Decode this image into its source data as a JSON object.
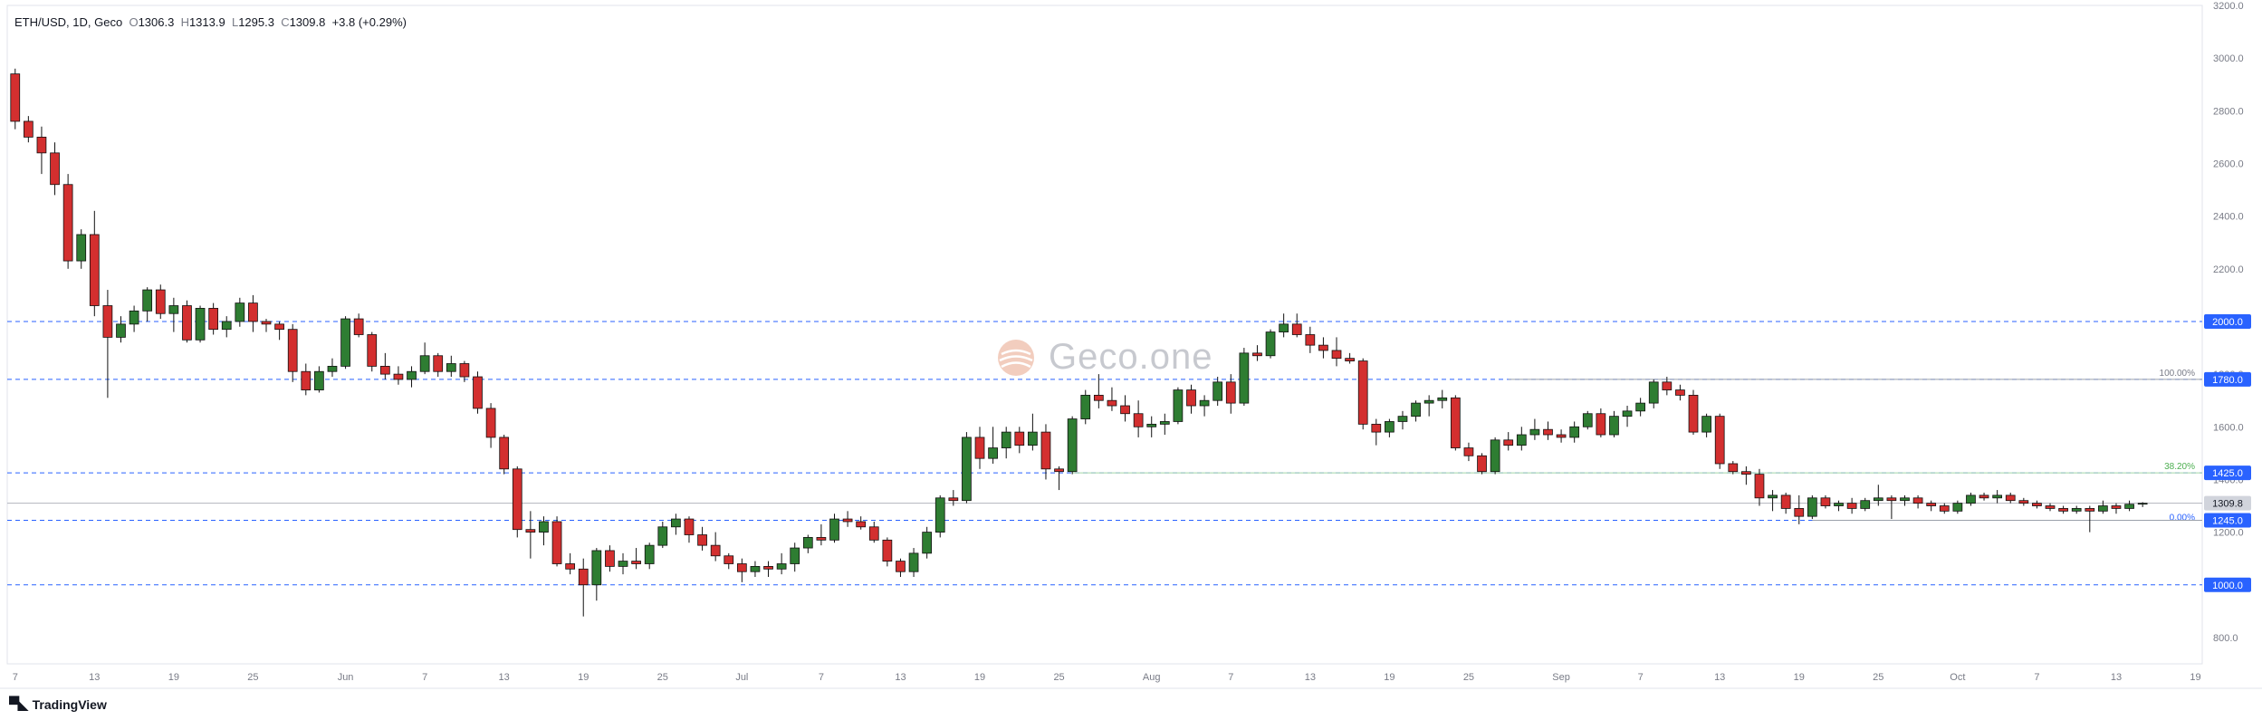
{
  "header": {
    "symbol": "ETH/USD, 1D, Geco",
    "o_label": "O",
    "o_value": "1306.3",
    "h_label": "H",
    "h_value": "1313.9",
    "l_label": "L",
    "l_value": "1295.3",
    "c_label": "C",
    "c_value": "1309.8",
    "change": "+3.8 (+0.29%)"
  },
  "watermark": "Geco.one",
  "footer": {
    "brand": "TradingView"
  },
  "colors": {
    "up": "#2e7d32",
    "down": "#d32f2f",
    "grid": "#e0e3eb",
    "level_line": "#2962ff",
    "label_bg": "#2962ff",
    "last_price_bg": "#d1d4dc",
    "fib_green": "#4caf50",
    "axis_text": "#787b86"
  },
  "chart_data": {
    "type": "candlestick",
    "symbol": "ETH/USD",
    "timeframe": "1D",
    "ylim": [
      700,
      3200
    ],
    "y_ticks": [
      800,
      1000,
      1200,
      1400,
      1600,
      1800,
      2000,
      2200,
      2400,
      2600,
      2800,
      3000,
      3200
    ],
    "y_tick_labels": [
      "800.0",
      "1000.0",
      "1200.0",
      "1400.0",
      "1600.0",
      "1800.0",
      "2000.0",
      "2200.0",
      "2400.0",
      "2600.0",
      "2800.0",
      "3000.0",
      "3200.0"
    ],
    "x_tick_labels": [
      "7",
      "13",
      "19",
      "25",
      "Jun",
      "7",
      "13",
      "19",
      "25",
      "Jul",
      "7",
      "13",
      "19",
      "25",
      "Aug",
      "7",
      "13",
      "19",
      "25",
      "Sep",
      "7",
      "13",
      "19",
      "25",
      "Oct",
      "7",
      "13",
      "19"
    ],
    "x_tick_candle_index": [
      0,
      6,
      12,
      18,
      25,
      31,
      37,
      43,
      49,
      55,
      61,
      67,
      73,
      79,
      86,
      92,
      98,
      104,
      110,
      117,
      123,
      129,
      135,
      141,
      147,
      153,
      159,
      165
    ],
    "horizontal_levels": [
      {
        "price": 2000.0,
        "label": "2000.0"
      },
      {
        "price": 1780.0,
        "label": "1780.0"
      },
      {
        "price": 1425.0,
        "label": "1425.0"
      },
      {
        "price": 1245.0,
        "label": "1245.0"
      },
      {
        "price": 1000.0,
        "label": "1000.0"
      }
    ],
    "last_price": {
      "price": 1309.8,
      "label": "1309.8"
    },
    "fib_labels": [
      {
        "price": 1780.0,
        "text": "100.00%"
      },
      {
        "price": 1425.0,
        "text": "38.20%"
      },
      {
        "price": 1245.0,
        "text": "0.00%"
      }
    ],
    "candles": [
      [
        2940,
        2960,
        2730,
        2760
      ],
      [
        2760,
        2780,
        2680,
        2700
      ],
      [
        2700,
        2740,
        2560,
        2640
      ],
      [
        2640,
        2680,
        2480,
        2520
      ],
      [
        2520,
        2560,
        2200,
        2230
      ],
      [
        2230,
        2350,
        2200,
        2330
      ],
      [
        2330,
        2420,
        2020,
        2060
      ],
      [
        2060,
        2120,
        1710,
        1940
      ],
      [
        1940,
        2020,
        1920,
        1990
      ],
      [
        1990,
        2060,
        1960,
        2040
      ],
      [
        2040,
        2130,
        2000,
        2120
      ],
      [
        2120,
        2140,
        2010,
        2030
      ],
      [
        2030,
        2090,
        1960,
        2060
      ],
      [
        2060,
        2080,
        1920,
        1930
      ],
      [
        1930,
        2060,
        1920,
        2050
      ],
      [
        2050,
        2070,
        1950,
        1970
      ],
      [
        1970,
        2020,
        1940,
        2000
      ],
      [
        2000,
        2090,
        1980,
        2070
      ],
      [
        2070,
        2100,
        1960,
        2000
      ],
      [
        2000,
        2010,
        1960,
        1990
      ],
      [
        1990,
        2000,
        1930,
        1970
      ],
      [
        1970,
        1990,
        1770,
        1810
      ],
      [
        1810,
        1840,
        1720,
        1740
      ],
      [
        1740,
        1830,
        1730,
        1810
      ],
      [
        1810,
        1860,
        1790,
        1830
      ],
      [
        1830,
        2020,
        1820,
        2010
      ],
      [
        2010,
        2030,
        1940,
        1950
      ],
      [
        1950,
        1960,
        1810,
        1830
      ],
      [
        1830,
        1880,
        1780,
        1800
      ],
      [
        1800,
        1830,
        1760,
        1780
      ],
      [
        1780,
        1830,
        1750,
        1810
      ],
      [
        1810,
        1920,
        1800,
        1870
      ],
      [
        1870,
        1880,
        1790,
        1810
      ],
      [
        1810,
        1870,
        1790,
        1840
      ],
      [
        1840,
        1850,
        1770,
        1790
      ],
      [
        1790,
        1810,
        1650,
        1670
      ],
      [
        1670,
        1690,
        1520,
        1560
      ],
      [
        1560,
        1570,
        1420,
        1440
      ],
      [
        1440,
        1450,
        1180,
        1210
      ],
      [
        1210,
        1280,
        1100,
        1200
      ],
      [
        1200,
        1260,
        1150,
        1240
      ],
      [
        1240,
        1260,
        1070,
        1080
      ],
      [
        1080,
        1120,
        1040,
        1060
      ],
      [
        1060,
        1100,
        880,
        1000
      ],
      [
        1000,
        1140,
        940,
        1130
      ],
      [
        1130,
        1150,
        1050,
        1070
      ],
      [
        1070,
        1120,
        1040,
        1090
      ],
      [
        1090,
        1140,
        1060,
        1080
      ],
      [
        1080,
        1160,
        1060,
        1150
      ],
      [
        1150,
        1240,
        1140,
        1220
      ],
      [
        1220,
        1270,
        1190,
        1250
      ],
      [
        1250,
        1260,
        1160,
        1190
      ],
      [
        1190,
        1220,
        1130,
        1150
      ],
      [
        1150,
        1200,
        1090,
        1110
      ],
      [
        1110,
        1120,
        1060,
        1080
      ],
      [
        1080,
        1100,
        1010,
        1050
      ],
      [
        1050,
        1090,
        1030,
        1070
      ],
      [
        1070,
        1090,
        1030,
        1060
      ],
      [
        1060,
        1120,
        1040,
        1080
      ],
      [
        1080,
        1160,
        1050,
        1140
      ],
      [
        1140,
        1190,
        1120,
        1180
      ],
      [
        1180,
        1230,
        1150,
        1170
      ],
      [
        1170,
        1270,
        1160,
        1250
      ],
      [
        1250,
        1280,
        1220,
        1240
      ],
      [
        1240,
        1260,
        1210,
        1220
      ],
      [
        1220,
        1240,
        1160,
        1170
      ],
      [
        1170,
        1180,
        1070,
        1090
      ],
      [
        1090,
        1100,
        1030,
        1050
      ],
      [
        1050,
        1140,
        1030,
        1120
      ],
      [
        1120,
        1220,
        1100,
        1200
      ],
      [
        1200,
        1340,
        1180,
        1330
      ],
      [
        1330,
        1360,
        1300,
        1320
      ],
      [
        1320,
        1580,
        1310,
        1560
      ],
      [
        1560,
        1600,
        1440,
        1480
      ],
      [
        1480,
        1600,
        1460,
        1520
      ],
      [
        1520,
        1600,
        1480,
        1580
      ],
      [
        1580,
        1600,
        1500,
        1530
      ],
      [
        1530,
        1650,
        1510,
        1580
      ],
      [
        1580,
        1610,
        1400,
        1440
      ],
      [
        1440,
        1450,
        1360,
        1430
      ],
      [
        1430,
        1640,
        1420,
        1630
      ],
      [
        1630,
        1740,
        1610,
        1720
      ],
      [
        1720,
        1800,
        1670,
        1700
      ],
      [
        1700,
        1750,
        1660,
        1680
      ],
      [
        1680,
        1720,
        1620,
        1650
      ],
      [
        1650,
        1700,
        1560,
        1600
      ],
      [
        1600,
        1640,
        1560,
        1610
      ],
      [
        1610,
        1650,
        1570,
        1620
      ],
      [
        1620,
        1750,
        1610,
        1740
      ],
      [
        1740,
        1760,
        1650,
        1680
      ],
      [
        1680,
        1720,
        1640,
        1700
      ],
      [
        1700,
        1790,
        1680,
        1770
      ],
      [
        1770,
        1800,
        1650,
        1690
      ],
      [
        1690,
        1900,
        1680,
        1880
      ],
      [
        1880,
        1910,
        1850,
        1870
      ],
      [
        1870,
        1970,
        1860,
        1960
      ],
      [
        1960,
        2030,
        1940,
        1990
      ],
      [
        1990,
        2030,
        1940,
        1950
      ],
      [
        1950,
        1980,
        1880,
        1910
      ],
      [
        1910,
        1940,
        1860,
        1890
      ],
      [
        1890,
        1940,
        1830,
        1860
      ],
      [
        1860,
        1880,
        1840,
        1850
      ],
      [
        1850,
        1860,
        1590,
        1610
      ],
      [
        1610,
        1630,
        1530,
        1580
      ],
      [
        1580,
        1630,
        1560,
        1620
      ],
      [
        1620,
        1660,
        1590,
        1640
      ],
      [
        1640,
        1700,
        1620,
        1690
      ],
      [
        1690,
        1720,
        1640,
        1700
      ],
      [
        1700,
        1740,
        1670,
        1710
      ],
      [
        1710,
        1720,
        1510,
        1520
      ],
      [
        1520,
        1540,
        1470,
        1490
      ],
      [
        1490,
        1500,
        1420,
        1430
      ],
      [
        1430,
        1560,
        1420,
        1550
      ],
      [
        1550,
        1580,
        1510,
        1530
      ],
      [
        1530,
        1600,
        1510,
        1570
      ],
      [
        1570,
        1630,
        1550,
        1590
      ],
      [
        1590,
        1620,
        1550,
        1570
      ],
      [
        1570,
        1590,
        1540,
        1560
      ],
      [
        1560,
        1620,
        1540,
        1600
      ],
      [
        1600,
        1660,
        1590,
        1650
      ],
      [
        1650,
        1670,
        1560,
        1570
      ],
      [
        1570,
        1660,
        1560,
        1640
      ],
      [
        1640,
        1680,
        1600,
        1660
      ],
      [
        1660,
        1710,
        1640,
        1690
      ],
      [
        1690,
        1780,
        1670,
        1770
      ],
      [
        1770,
        1790,
        1720,
        1740
      ],
      [
        1740,
        1760,
        1700,
        1720
      ],
      [
        1720,
        1740,
        1570,
        1580
      ],
      [
        1580,
        1650,
        1560,
        1640
      ],
      [
        1640,
        1650,
        1440,
        1460
      ],
      [
        1460,
        1470,
        1420,
        1430
      ],
      [
        1430,
        1450,
        1380,
        1420
      ],
      [
        1420,
        1440,
        1300,
        1330
      ],
      [
        1330,
        1360,
        1280,
        1340
      ],
      [
        1340,
        1350,
        1270,
        1290
      ],
      [
        1290,
        1340,
        1230,
        1260
      ],
      [
        1260,
        1340,
        1250,
        1330
      ],
      [
        1330,
        1340,
        1290,
        1300
      ],
      [
        1300,
        1320,
        1280,
        1310
      ],
      [
        1310,
        1330,
        1270,
        1290
      ],
      [
        1290,
        1330,
        1280,
        1320
      ],
      [
        1320,
        1380,
        1300,
        1330
      ],
      [
        1330,
        1340,
        1250,
        1320
      ],
      [
        1320,
        1340,
        1300,
        1330
      ],
      [
        1330,
        1340,
        1290,
        1310
      ],
      [
        1310,
        1320,
        1280,
        1300
      ],
      [
        1300,
        1310,
        1270,
        1280
      ],
      [
        1280,
        1320,
        1270,
        1310
      ],
      [
        1310,
        1350,
        1300,
        1340
      ],
      [
        1340,
        1350,
        1320,
        1330
      ],
      [
        1330,
        1360,
        1310,
        1340
      ],
      [
        1340,
        1350,
        1310,
        1320
      ],
      [
        1320,
        1330,
        1300,
        1310
      ],
      [
        1310,
        1320,
        1290,
        1300
      ],
      [
        1300,
        1310,
        1280,
        1290
      ],
      [
        1290,
        1300,
        1270,
        1280
      ],
      [
        1280,
        1300,
        1270,
        1290
      ],
      [
        1290,
        1300,
        1200,
        1280
      ],
      [
        1280,
        1320,
        1270,
        1300
      ],
      [
        1300,
        1310,
        1270,
        1290
      ],
      [
        1290,
        1320,
        1280,
        1306
      ],
      [
        1306.3,
        1313.9,
        1295.3,
        1309.8
      ]
    ]
  }
}
